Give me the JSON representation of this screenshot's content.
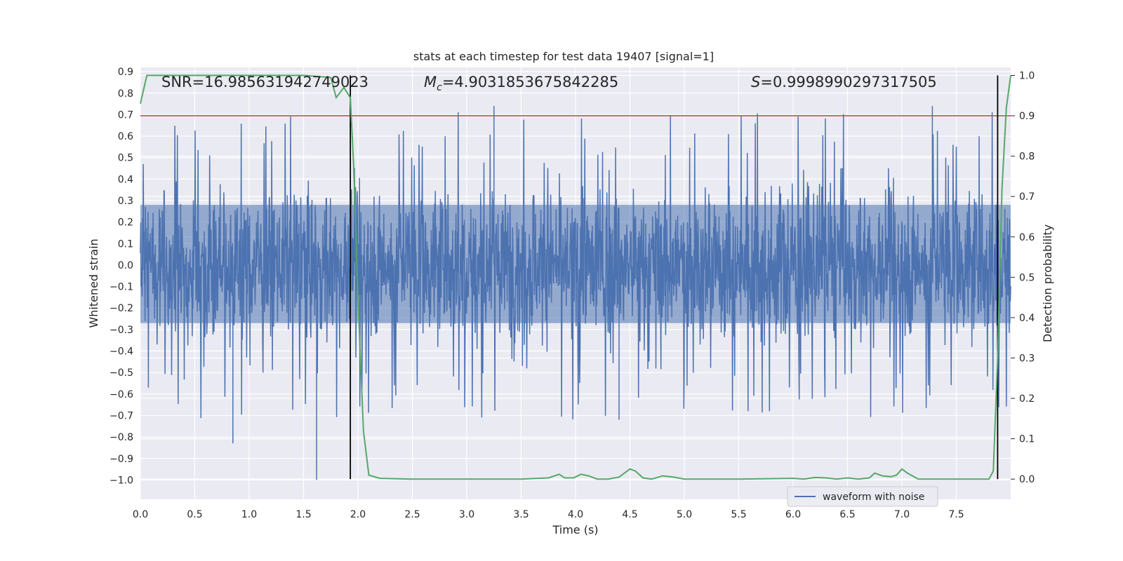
{
  "chart_data": {
    "type": "line",
    "title": "stats at each timestep for test data 19407 [signal=1]",
    "xlabel": "Time (s)",
    "ylabel": "Whitened strain",
    "y2label": "Detection probability",
    "xlim": [
      0.0,
      8.0
    ],
    "ylim": [
      -1.09,
      0.92
    ],
    "y2lim": [
      -0.05,
      1.02
    ],
    "x_ticks": [
      "0.0",
      "0.5",
      "1.0",
      "1.5",
      "2.0",
      "2.5",
      "3.0",
      "3.5",
      "4.0",
      "4.5",
      "5.0",
      "5.5",
      "6.0",
      "6.5",
      "7.0",
      "7.5"
    ],
    "y_ticks": [
      "0.9",
      "0.8",
      "0.7",
      "0.6",
      "0.5",
      "0.4",
      "0.3",
      "0.2",
      "0.1",
      "0.0",
      "−0.1",
      "−0.2",
      "−0.3",
      "−0.4",
      "−0.5",
      "−0.6",
      "−0.7",
      "−0.8",
      "−0.9",
      "−1.0"
    ],
    "y2_ticks": [
      "1.0",
      "0.9",
      "0.8",
      "0.7",
      "0.6",
      "0.5",
      "0.4",
      "0.3",
      "0.2",
      "0.1",
      "0.0"
    ],
    "grid": true,
    "legend_position": "bottom-right",
    "annotations": {
      "snr": "SNR=16.985631942749023",
      "mc_sym": "M",
      "mc_sub": "c",
      "mc_val": "=4.9031853675842285",
      "s_sym": "S",
      "s_val": "=0.9998990297317505"
    },
    "threshold": 0.9,
    "vertical_markers": [
      1.93,
      7.88
    ],
    "series": [
      {
        "name": "waveform with noise",
        "color": "#4c72b0",
        "description_axis": "left",
        "envelope": {
          "noise_sigma": 0.17,
          "peak_max": 0.74,
          "peak_min": -1.0
        }
      },
      {
        "color": "#55a868",
        "axis": "right",
        "x": [
          0.0,
          0.06,
          0.5,
          1.0,
          1.5,
          1.75,
          1.8,
          1.87,
          1.93,
          1.96,
          2.0,
          2.05,
          2.1,
          2.2,
          2.5,
          3.0,
          3.5,
          3.75,
          3.85,
          3.9,
          3.98,
          4.05,
          4.12,
          4.2,
          4.3,
          4.4,
          4.5,
          4.55,
          4.62,
          4.7,
          4.8,
          4.9,
          5.0,
          5.5,
          6.0,
          6.1,
          6.2,
          6.3,
          6.4,
          6.5,
          6.6,
          6.7,
          6.75,
          6.82,
          6.9,
          6.95,
          7.0,
          7.05,
          7.15,
          7.3,
          7.5,
          7.7,
          7.8,
          7.84,
          7.88,
          7.92,
          7.96,
          8.0
        ],
        "y": [
          0.93,
          1.0,
          1.0,
          1.0,
          1.0,
          0.995,
          0.945,
          0.97,
          0.945,
          0.78,
          0.45,
          0.12,
          0.01,
          0.002,
          0.0,
          0.0,
          0.0,
          0.003,
          0.012,
          0.003,
          0.003,
          0.012,
          0.008,
          0.0,
          0.0,
          0.005,
          0.025,
          0.02,
          0.003,
          0.0,
          0.008,
          0.005,
          0.0,
          0.0,
          0.002,
          0.0,
          0.004,
          0.003,
          0.0,
          0.003,
          0.0,
          0.003,
          0.015,
          0.008,
          0.006,
          0.01,
          0.025,
          0.015,
          0.0,
          0.0,
          0.0,
          0.0,
          0.0,
          0.02,
          0.3,
          0.72,
          0.92,
          1.0
        ]
      }
    ]
  }
}
